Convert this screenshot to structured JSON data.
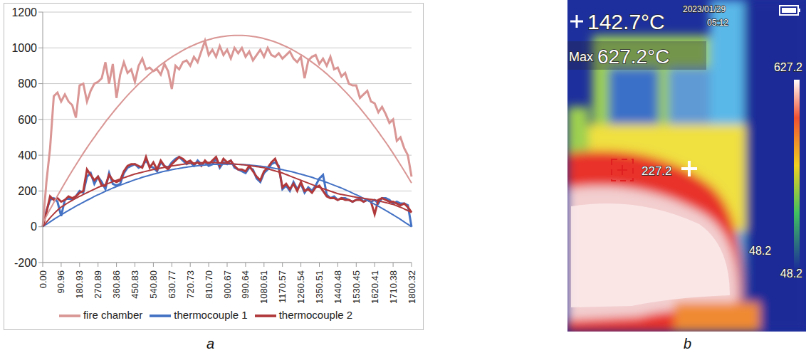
{
  "panel_labels": [
    "a",
    "b"
  ],
  "chart_data": {
    "type": "line",
    "categories": [
      "0.00",
      null,
      null,
      null,
      null,
      "90.96",
      null,
      null,
      null,
      null,
      "180.93",
      null,
      null,
      null,
      null,
      "270.89",
      null,
      null,
      null,
      null,
      "360.86",
      null,
      null,
      null,
      null,
      "450.83",
      null,
      null,
      null,
      null,
      "540.80",
      null,
      null,
      null,
      null,
      "630.77",
      null,
      null,
      null,
      null,
      "720.73",
      null,
      null,
      null,
      null,
      "810.70",
      null,
      null,
      null,
      null,
      "900.67",
      null,
      null,
      null,
      null,
      "990.64",
      null,
      null,
      null,
      null,
      "1080.61",
      null,
      null,
      null,
      null,
      "1170.57",
      null,
      null,
      null,
      null,
      "1260.54",
      null,
      null,
      null,
      null,
      "1350.51",
      null,
      null,
      null,
      null,
      "1440.48",
      null,
      null,
      null,
      null,
      "1530.45",
      null,
      null,
      null,
      null,
      "1620.41",
      null,
      null,
      null,
      null,
      "1710.38",
      null,
      null,
      null,
      null,
      "1800.32"
    ],
    "ylim": [
      -200,
      1200
    ],
    "yticks": [
      -200,
      0,
      200,
      400,
      600,
      800,
      1000,
      1200
    ],
    "grid": true,
    "legend": "bottom",
    "series": [
      {
        "name": "thermocouple 1",
        "color": "#4472c4",
        "values": [
          0,
          90,
          150,
          160,
          140,
          60,
          150,
          160,
          150,
          170,
          200,
          190,
          280,
          300,
          240,
          280,
          250,
          210,
          300,
          240,
          230,
          240,
          300,
          330,
          340,
          350,
          330,
          340,
          370,
          340,
          330,
          310,
          360,
          340,
          330,
          360,
          380,
          390,
          370,
          350,
          360,
          340,
          370,
          350,
          360,
          340,
          350,
          380,
          330,
          360,
          350,
          370,
          330,
          320,
          310,
          300,
          330,
          320,
          270,
          250,
          300,
          320,
          350,
          360,
          340,
          210,
          230,
          200,
          250,
          210,
          240,
          190,
          220,
          200,
          230,
          270,
          290,
          180,
          160,
          170,
          150,
          160,
          160,
          150,
          140,
          150,
          160,
          140,
          150,
          140,
          150,
          130,
          160,
          160,
          150,
          130,
          140,
          130,
          130,
          120,
          0
        ],
        "trendline": [
          0,
          14,
          27,
          41,
          54,
          67,
          79,
          91,
          103,
          115,
          126,
          137,
          148,
          158,
          169,
          179,
          188,
          198,
          207,
          216,
          224,
          232,
          240,
          248,
          255,
          263,
          269,
          276,
          282,
          288,
          294,
          299,
          305,
          310,
          314,
          319,
          323,
          326,
          330,
          333,
          336,
          339,
          341,
          343,
          345,
          347,
          348,
          349,
          349,
          350,
          350,
          350,
          349,
          349,
          348,
          347,
          345,
          343,
          341,
          339,
          336,
          333,
          330,
          326,
          323,
          319,
          314,
          310,
          305,
          299,
          294,
          288,
          282,
          276,
          269,
          263,
          255,
          248,
          240,
          232,
          224,
          216,
          207,
          198,
          188,
          179,
          169,
          158,
          148,
          137,
          126,
          115,
          103,
          91,
          79,
          67,
          54,
          41,
          27,
          14,
          0
        ]
      },
      {
        "name": "thermocouple 2",
        "color": "#b0393b",
        "values": [
          0,
          80,
          170,
          150,
          160,
          140,
          150,
          170,
          160,
          170,
          190,
          200,
          320,
          290,
          260,
          280,
          230,
          230,
          290,
          260,
          250,
          260,
          310,
          340,
          350,
          350,
          340,
          330,
          390,
          330,
          360,
          320,
          370,
          340,
          320,
          350,
          370,
          390,
          380,
          360,
          370,
          350,
          360,
          340,
          370,
          350,
          370,
          390,
          340,
          380,
          360,
          370,
          340,
          320,
          320,
          310,
          340,
          310,
          280,
          260,
          310,
          330,
          360,
          380,
          330,
          220,
          240,
          210,
          240,
          200,
          250,
          200,
          210,
          190,
          220,
          230,
          200,
          170,
          160,
          160,
          150,
          160,
          150,
          150,
          140,
          150,
          150,
          140,
          150,
          140,
          70,
          150,
          160,
          150,
          140,
          140,
          130,
          120,
          130,
          110,
          80
        ],
        "trendline": [
          0,
          25,
          50,
          72,
          92,
          110,
          123,
          136,
          148,
          159,
          170,
          180,
          190,
          200,
          210,
          220,
          228,
          236,
          244,
          252,
          260,
          267,
          274,
          281,
          288,
          295,
          300,
          305,
          310,
          315,
          320,
          324,
          328,
          332,
          336,
          340,
          343,
          346,
          349,
          352,
          355,
          356,
          357,
          358,
          359,
          360,
          359,
          358,
          357,
          356,
          355,
          353,
          351,
          349,
          347,
          345,
          342,
          339,
          336,
          333,
          330,
          324,
          318,
          312,
          306,
          300,
          292,
          284,
          276,
          268,
          260,
          252,
          244,
          236,
          228,
          220,
          213,
          206,
          199,
          192,
          185,
          181,
          177,
          173,
          169,
          165,
          162,
          159,
          156,
          153,
          150,
          145,
          140,
          135,
          130,
          125,
          117,
          109,
          100,
          90,
          80
        ]
      },
      {
        "name": "fire chamber",
        "color": "#d99694",
        "values": [
          0,
          250,
          440,
          730,
          750,
          700,
          740,
          700,
          680,
          610,
          790,
          800,
          700,
          760,
          800,
          810,
          830,
          920,
          800,
          910,
          720,
          850,
          920,
          860,
          880,
          810,
          900,
          940,
          880,
          890,
          870,
          880,
          850,
          910,
          870,
          770,
          900,
          880,
          920,
          930,
          900,
          950,
          920,
          980,
          1040,
          960,
          990,
          950,
          1010,
          960,
          990,
          940,
          1000,
          970,
          1000,
          950,
          980,
          930,
          960,
          990,
          950,
          1000,
          960,
          950,
          970,
          940,
          960,
          980,
          940,
          920,
          950,
          830,
          930,
          950,
          960,
          910,
          940,
          900,
          950,
          880,
          890,
          840,
          860,
          800,
          790,
          790,
          720,
          740,
          760,
          700,
          690,
          640,
          670,
          630,
          580,
          600,
          480,
          500,
          440,
          400,
          280
        ],
        "trendline": [
          20,
          59,
          98,
          135,
          173,
          209,
          244,
          279,
          313,
          346,
          379,
          411,
          442,
          472,
          501,
          530,
          558,
          586,
          612,
          638,
          663,
          687,
          711,
          734,
          756,
          777,
          798,
          817,
          836,
          855,
          872,
          889,
          905,
          920,
          935,
          949,
          962,
          974,
          986,
          997,
          1007,
          1016,
          1025,
          1033,
          1040,
          1046,
          1052,
          1057,
          1061,
          1064,
          1067,
          1069,
          1070,
          1070,
          1070,
          1069,
          1067,
          1064,
          1061,
          1057,
          1052,
          1046,
          1040,
          1033,
          1025,
          1016,
          1007,
          997,
          986,
          974,
          962,
          949,
          935,
          920,
          905,
          889,
          872,
          855,
          836,
          817,
          798,
          777,
          756,
          734,
          711,
          687,
          663,
          638,
          612,
          586,
          558,
          530,
          501,
          472,
          442,
          411,
          379,
          346,
          313,
          279,
          244
        ]
      }
    ]
  },
  "thermal_image": {
    "center_reading": "142.7°C",
    "date": "2023/01/29",
    "time": "05:12",
    "max_label": "Max",
    "max_reading": "627.2°C",
    "scale_max": "627.2",
    "spot_reading": "227.2",
    "scale_min": "48.2",
    "min_reading": "48.2"
  }
}
